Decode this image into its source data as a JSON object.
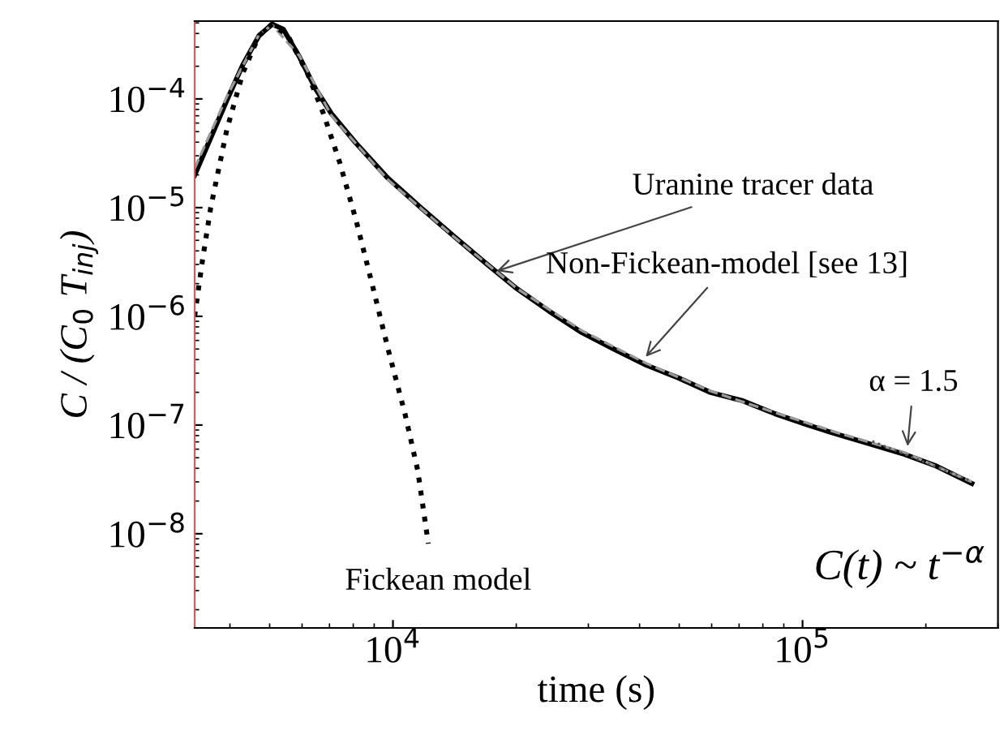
{
  "chart_data": {
    "type": "line",
    "xlabel": "time (s)",
    "ylabel": "C / (C$_{0}$ T$_{inj}$)",
    "log": "xy",
    "grid": false,
    "legend": false,
    "xlim": [
      3280,
      300000
    ],
    "ylim": [
      1.36e-09,
      0.00052
    ],
    "xticks": [
      {
        "value": 10000,
        "label": "10$^{4}$"
      },
      {
        "value": 100000,
        "label": "10$^{5}$"
      }
    ],
    "yticks": [
      {
        "value": 1e-08,
        "label": "10$^{−8}$"
      },
      {
        "value": 1e-07,
        "label": "10$^{−7}$"
      },
      {
        "value": 1e-06,
        "label": "10$^{−6}$"
      },
      {
        "value": 1e-05,
        "label": "10$^{−5}$"
      },
      {
        "value": 0.0001,
        "label": "10$^{−4}$"
      }
    ],
    "series": [
      {
        "color": "#000000",
        "line_style": "solid",
        "x": [
          3280,
          3590,
          3930,
          4300,
          4710,
          5070,
          5400,
          5910,
          6480,
          7080,
          8110,
          9730,
          11700,
          14000,
          16800,
          20100,
          24100,
          28900,
          34600,
          41500,
          49800,
          59700,
          71500,
          85700,
          103000,
          123000,
          148000,
          177000,
          212000,
          259000
        ],
        "values": [
          1.99e-05,
          4.38e-05,
          9.7e-05,
          0.000206,
          0.000382,
          0.000487,
          0.000438,
          0.000244,
          0.000123,
          7.3e-05,
          3.95e-05,
          1.86e-05,
          1e-05,
          5.57e-06,
          3.11e-06,
          1.79e-06,
          1.11e-06,
          7.1e-07,
          5e-07,
          3.56e-07,
          2.71e-07,
          1.99e-07,
          1.67e-07,
          1.27e-07,
          1e-07,
          8.1e-08,
          6.6e-08,
          5.4e-08,
          4.2e-08,
          2.9e-08
        ]
      },
      {
        "color": "#999999",
        "line_style": "dashed",
        "x": [
          3280,
          3930,
          4710,
          5070,
          5910,
          7080,
          9730,
          14000,
          20100,
          28900,
          41500,
          59700,
          85700,
          123000,
          177000,
          259000
        ],
        "values": [
          2.3e-05,
          0.000105,
          0.00039,
          0.00048,
          0.00025,
          7e-05,
          1.8e-05,
          5.5e-06,
          1.8e-06,
          7.4e-07,
          3.7e-07,
          2.05e-07,
          1.3e-07,
          8.4e-08,
          5.6e-08,
          3e-08
        ]
      },
      {
        "color": "#000000",
        "line_style": "dotted",
        "x": [
          3280,
          3430,
          3590,
          3930,
          4300,
          4710,
          5070,
          5540,
          6180,
          6770,
          7410,
          8110,
          8890,
          9730,
          10700,
          11500,
          12200
        ],
        "values": [
          1e-06,
          3.33e-06,
          1e-05,
          5.2e-05,
          0.000173,
          0.000382,
          0.000487,
          0.000382,
          0.000173,
          7.3e-05,
          2.62e-05,
          7.9e-06,
          2e-06,
          5e-07,
          1.27e-07,
          3.8e-08,
          8.1e-09
        ]
      },
      {
        "color": "#555555",
        "line_style": "dotted",
        "x": [
          148000,
          255000
        ],
        "values": [
          7.1e-08,
          3.11e-08
        ]
      }
    ],
    "annotations": [
      {
        "text": "Uranine tracer data",
        "x": 17500,
        "y": 2.53e-06
      },
      {
        "text": "Non-Fickean-model [see 13]",
        "x": 40700,
        "y": 3.95e-07
      },
      {
        "text": "α = 1.5",
        "x": 180000,
        "y": 5.8e-08
      },
      {
        "text": "Fickean model",
        "x": 12200,
        "y": 8.1e-09
      },
      "C(t) ~ t$^{−α}$"
    ]
  }
}
